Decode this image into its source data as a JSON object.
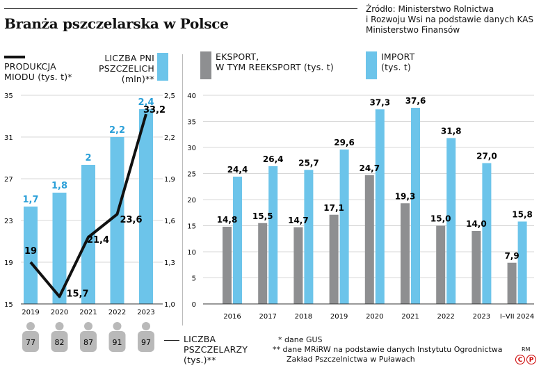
{
  "title": "Branża pszczelarska w Polsce",
  "source": "Źródło: Ministerstwo Rolnictwa\ni Rozwoju Wsi na podstawie danych KAS\nMinisterstwo Finansów",
  "colors": {
    "blue": "#6cc4ea",
    "grey": "#8e8f91",
    "black": "#111111",
    "blue_label": "#2a9fd8"
  },
  "legend": {
    "honey": "PRODUKCJA\nMIODU (tys. t)*",
    "hives": "LICZBA PNI\nPSZCZELICH\n(mln)**",
    "export": "EKSPORT,\nW TYM REEKSPORT (tys. t)",
    "import": "IMPORT\n(tys. t)",
    "beekeepers": "LICZBA\nPSZCZELARZY\n(tys.)**"
  },
  "footnotes": {
    "gus": "* dane GUS",
    "mrirw": "** dane MRiRW na podstawie danych Instytutu Ogrodnictwa",
    "mrirw2": "Zakład Pszczelnictwa w Puławach"
  },
  "credit": "RM",
  "chart_data": [
    {
      "type": "bar+line",
      "categories": [
        "2019",
        "2020",
        "2021",
        "2022",
        "2023"
      ],
      "series": [
        {
          "name": "LICZBA PNI PSZCZELICH (mln)",
          "type": "bar",
          "axis": "right",
          "values": [
            1.7,
            1.8,
            2.0,
            2.2,
            2.4
          ],
          "labels": [
            "1,7",
            "1,8",
            "2",
            "2,2",
            "2,4"
          ]
        },
        {
          "name": "PRODUKCJA MIODU (tys. t)",
          "type": "line",
          "axis": "left",
          "values": [
            19,
            15.7,
            21.4,
            23.6,
            33.2
          ],
          "labels": [
            "19",
            "15,7",
            "21,4",
            "23,6",
            "33,2"
          ]
        }
      ],
      "y_left": {
        "ylim": [
          15,
          35
        ],
        "ticks": [
          "15",
          "19",
          "23",
          "27",
          "31",
          "35"
        ]
      },
      "y_right": {
        "ylim": [
          1.0,
          2.5
        ],
        "ticks": [
          "1,0",
          "1,3",
          "1,6",
          "1,9",
          "2,2",
          "2,5"
        ]
      },
      "beekeepers": {
        "values": [
          77,
          82,
          87,
          91,
          97
        ]
      }
    },
    {
      "type": "bar",
      "categories": [
        "2016",
        "2017",
        "2018",
        "2019",
        "2020",
        "2021",
        "2022",
        "2023",
        "I–VII 2024"
      ],
      "series": [
        {
          "name": "EKSPORT, W TYM REEKSPORT (tys. t)",
          "values": [
            14.8,
            15.5,
            14.7,
            17.1,
            24.7,
            19.3,
            15.0,
            14.0,
            7.9
          ],
          "labels": [
            "14,8",
            "15,5",
            "14,7",
            "17,1",
            "24,7",
            "19,3",
            "15,0",
            "14,0",
            "7,9"
          ]
        },
        {
          "name": "IMPORT (tys. t)",
          "values": [
            24.4,
            26.4,
            25.7,
            29.6,
            37.3,
            37.6,
            31.8,
            27.0,
            15.8
          ],
          "labels": [
            "24,4",
            "26,4",
            "25,7",
            "29,6",
            "37,3",
            "37,6",
            "31,8",
            "27,0",
            "15,8"
          ]
        }
      ],
      "ylim": [
        0,
        40
      ],
      "ticks": [
        "0",
        "5",
        "10",
        "15",
        "20",
        "25",
        "30",
        "35",
        "40"
      ]
    }
  ]
}
